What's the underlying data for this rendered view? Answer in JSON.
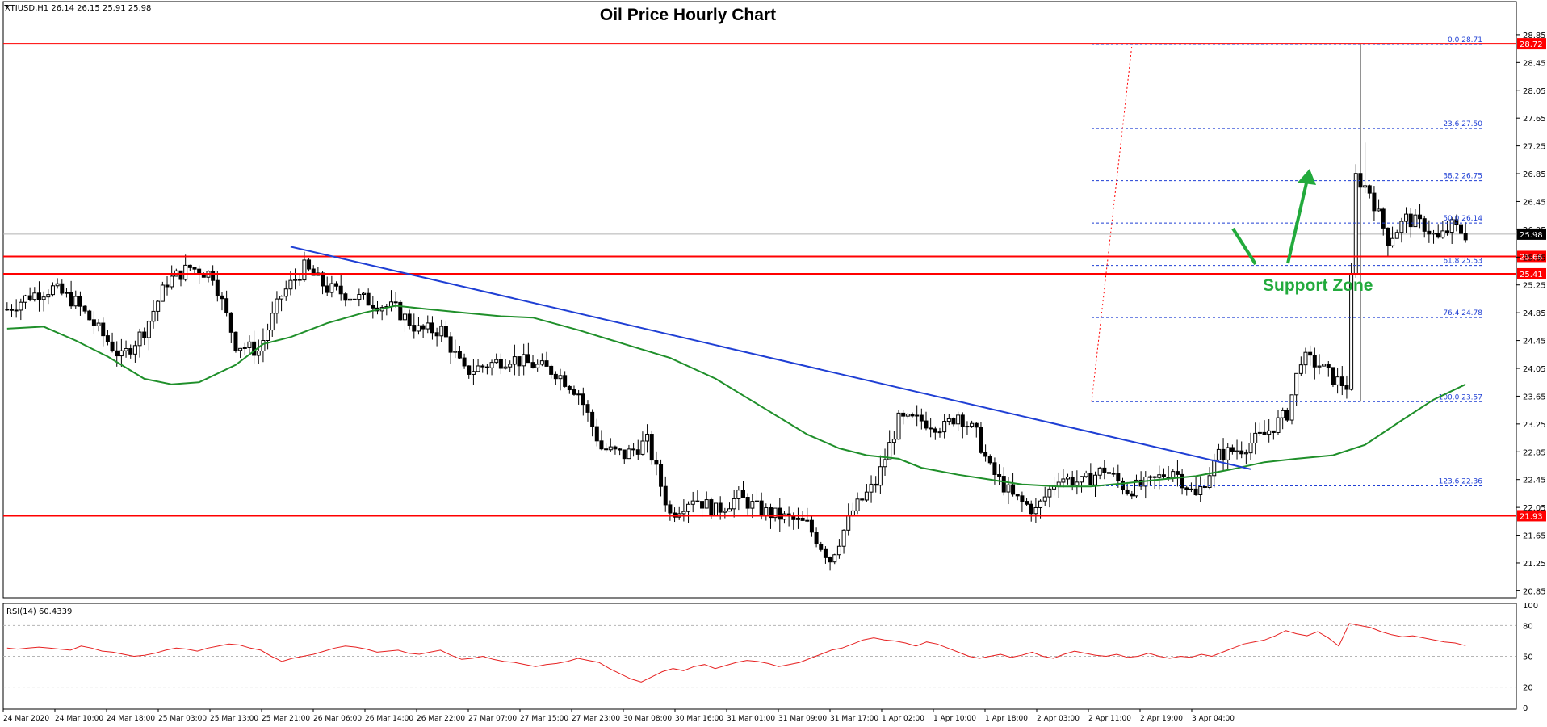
{
  "chart_data": {
    "type": "candlestick",
    "symbol_header": "XTIUSD,H1  26.14 26.15 25.91 25.98",
    "title": "Oil Price Hourly Chart",
    "annotation_support": "Support Zone",
    "ylim": [
      20.75,
      29.0
    ],
    "price_ticks": [
      "28.85",
      "28.45",
      "28.05",
      "27.65",
      "27.25",
      "26.85",
      "26.45",
      "26.05",
      "25.65",
      "25.25",
      "24.85",
      "24.45",
      "24.05",
      "23.65",
      "23.25",
      "22.85",
      "22.45",
      "22.05",
      "21.65",
      "21.25",
      "20.85"
    ],
    "time_labels": [
      "24 Mar 2020",
      "24 Mar 10:00",
      "24 Mar 18:00",
      "25 Mar 03:00",
      "25 Mar 13:00",
      "25 Mar 21:00",
      "26 Mar 06:00",
      "26 Mar 14:00",
      "26 Mar 22:00",
      "27 Mar 07:00",
      "27 Mar 15:00",
      "27 Mar 23:00",
      "30 Mar 08:00",
      "30 Mar 16:00",
      "31 Mar 01:00",
      "31 Mar 09:00",
      "31 Mar 17:00",
      "1 Apr 02:00",
      "1 Apr 10:00",
      "1 Apr 18:00",
      "2 Apr 03:00",
      "2 Apr 11:00",
      "2 Apr 19:00",
      "3 Apr 04:00"
    ],
    "current_price": "25.98",
    "horizontal_levels": [
      {
        "label": "28.72",
        "value": 28.72
      },
      {
        "label": "25.66",
        "value": 25.66
      },
      {
        "label": "25.41",
        "value": 25.41
      },
      {
        "label": "21.93",
        "value": 21.93
      }
    ],
    "fibonacci_levels": [
      {
        "label": "0.0 28.71",
        "value": 28.71
      },
      {
        "label": "23.6 27.50",
        "value": 27.5
      },
      {
        "label": "38.2 26.75",
        "value": 26.75
      },
      {
        "label": "50.0 26.14",
        "value": 26.14
      },
      {
        "label": "61.8 25.53",
        "value": 25.53
      },
      {
        "label": "76.4 24.78",
        "value": 24.78
      },
      {
        "label": "100.0 23.57",
        "value": 23.57
      },
      {
        "label": "123.6 22.36",
        "value": 22.36
      }
    ],
    "close_path": [
      [
        0,
        24.9
      ],
      [
        5,
        25.1
      ],
      [
        10,
        25.2
      ],
      [
        15,
        25.0
      ],
      [
        20,
        24.6
      ],
      [
        25,
        24.2
      ],
      [
        30,
        24.6
      ],
      [
        35,
        25.3
      ],
      [
        40,
        25.5
      ],
      [
        45,
        25.4
      ],
      [
        50,
        24.4
      ],
      [
        55,
        24.3
      ],
      [
        60,
        25.1
      ],
      [
        65,
        25.5
      ],
      [
        70,
        25.2
      ],
      [
        75,
        25.1
      ],
      [
        80,
        25.0
      ],
      [
        85,
        24.9
      ],
      [
        90,
        24.6
      ],
      [
        95,
        24.6
      ],
      [
        100,
        24.0
      ],
      [
        105,
        24.1
      ],
      [
        110,
        24.2
      ],
      [
        115,
        24.1
      ],
      [
        120,
        24.0
      ],
      [
        125,
        23.7
      ],
      [
        130,
        22.9
      ],
      [
        135,
        22.8
      ],
      [
        140,
        23.0
      ],
      [
        145,
        21.95
      ],
      [
        150,
        22.2
      ],
      [
        155,
        22.0
      ],
      [
        160,
        22.2
      ],
      [
        165,
        22.0
      ],
      [
        170,
        21.9
      ],
      [
        175,
        21.8
      ],
      [
        180,
        21.3
      ],
      [
        185,
        22.0
      ],
      [
        190,
        22.4
      ],
      [
        195,
        23.3
      ],
      [
        200,
        23.3
      ],
      [
        205,
        23.2
      ],
      [
        208,
        23.4
      ],
      [
        212,
        23.1
      ],
      [
        215,
        22.6
      ],
      [
        220,
        22.2
      ],
      [
        225,
        22.0
      ],
      [
        230,
        22.5
      ],
      [
        235,
        22.4
      ],
      [
        240,
        22.6
      ],
      [
        245,
        22.3
      ],
      [
        250,
        22.4
      ],
      [
        255,
        22.6
      ],
      [
        260,
        22.2
      ],
      [
        265,
        22.8
      ],
      [
        270,
        22.9
      ],
      [
        275,
        23.1
      ],
      [
        280,
        23.4
      ],
      [
        283,
        24.2
      ],
      [
        287,
        24.1
      ],
      [
        290,
        23.9
      ],
      [
        293,
        23.8
      ],
      [
        295,
        26.8
      ],
      [
        298,
        26.6
      ],
      [
        302,
        25.9
      ],
      [
        306,
        26.2
      ],
      [
        310,
        26.1
      ],
      [
        313,
        25.9
      ],
      [
        316,
        26.1
      ],
      [
        319,
        25.98
      ]
    ],
    "ma_path": [
      [
        0,
        24.62
      ],
      [
        8,
        24.65
      ],
      [
        15,
        24.45
      ],
      [
        22,
        24.22
      ],
      [
        30,
        23.9
      ],
      [
        36,
        23.82
      ],
      [
        42,
        23.85
      ],
      [
        50,
        24.1
      ],
      [
        56,
        24.4
      ],
      [
        62,
        24.5
      ],
      [
        70,
        24.7
      ],
      [
        78,
        24.85
      ],
      [
        85,
        24.95
      ],
      [
        92,
        24.9
      ],
      [
        100,
        24.85
      ],
      [
        108,
        24.8
      ],
      [
        115,
        24.78
      ],
      [
        125,
        24.6
      ],
      [
        135,
        24.4
      ],
      [
        145,
        24.2
      ],
      [
        155,
        23.9
      ],
      [
        165,
        23.5
      ],
      [
        175,
        23.1
      ],
      [
        182,
        22.9
      ],
      [
        188,
        22.8
      ],
      [
        195,
        22.75
      ],
      [
        200,
        22.62
      ],
      [
        208,
        22.52
      ],
      [
        215,
        22.45
      ],
      [
        222,
        22.38
      ],
      [
        230,
        22.35
      ],
      [
        237,
        22.35
      ],
      [
        245,
        22.4
      ],
      [
        252,
        22.45
      ],
      [
        260,
        22.5
      ],
      [
        268,
        22.6
      ],
      [
        275,
        22.7
      ],
      [
        282,
        22.75
      ],
      [
        290,
        22.8
      ],
      [
        297,
        22.95
      ],
      [
        305,
        23.3
      ],
      [
        312,
        23.6
      ],
      [
        319,
        23.82
      ]
    ],
    "trendline": {
      "start": [
        62,
        25.8
      ],
      "end": [
        272,
        22.6
      ]
    },
    "rsi": {
      "label": "RSI(14) 60.4339",
      "ticks": [
        "100",
        "80",
        "50",
        "20",
        "0"
      ],
      "values": [
        58,
        57,
        58,
        59,
        58,
        57,
        56,
        60,
        58,
        55,
        54,
        52,
        50,
        51,
        53,
        56,
        58,
        57,
        55,
        58,
        60,
        62,
        61,
        58,
        56,
        50,
        45,
        48,
        50,
        52,
        55,
        58,
        60,
        59,
        57,
        54,
        55,
        56,
        53,
        52,
        54,
        56,
        51,
        47,
        48,
        50,
        47,
        45,
        44,
        42,
        40,
        42,
        43,
        45,
        48,
        46,
        44,
        38,
        33,
        28,
        25,
        30,
        35,
        38,
        36,
        40,
        42,
        38,
        41,
        44,
        46,
        45,
        43,
        40,
        42,
        44,
        48,
        52,
        56,
        58,
        62,
        66,
        68,
        66,
        65,
        63,
        60,
        64,
        62,
        58,
        54,
        50,
        48,
        50,
        52,
        49,
        51,
        54,
        50,
        48,
        52,
        55,
        53,
        51,
        50,
        52,
        49,
        50,
        53,
        50,
        48,
        50,
        49,
        52,
        50,
        54,
        58,
        62,
        64,
        66,
        70,
        75,
        72,
        70,
        74,
        68,
        60,
        82,
        80,
        78,
        74,
        71,
        69,
        70,
        68,
        66,
        64,
        63,
        60.4
      ]
    }
  }
}
